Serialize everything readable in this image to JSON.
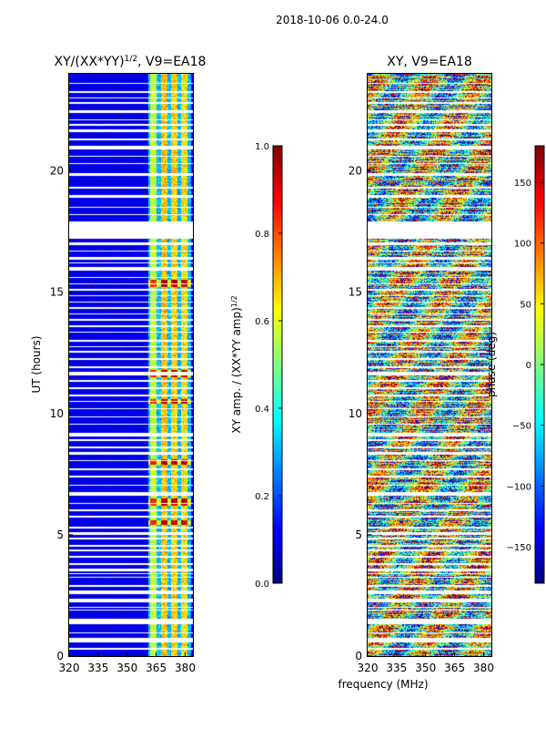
{
  "figure": {
    "suptitle": "2018-10-06 0.0-24.0",
    "xlabel": "frequency (MHz)",
    "ylabel": "UT (hours)"
  },
  "colormap": {
    "name": "jet",
    "stops": [
      "#00007f",
      "#0000ff",
      "#007fff",
      "#00ffff",
      "#7fff7f",
      "#ffff00",
      "#ff7f00",
      "#ff0000",
      "#7f0000"
    ],
    "gap_color": "#ffffff"
  },
  "chart_data": [
    {
      "type": "heatmap",
      "title_main": "XY/(XX*YY)",
      "title_exp": "1/2",
      "title_tail": ", V9=EA18",
      "x_range": [
        320,
        384
      ],
      "xticks": [
        320,
        335,
        350,
        365,
        380
      ],
      "y_range": [
        0,
        24
      ],
      "yticks": [
        0,
        5,
        10,
        15,
        20
      ],
      "colorbar": {
        "label_main": "XY amp. / (XX*YY amp)",
        "label_exp": "1/2",
        "range": [
          0.0,
          1.0
        ],
        "ticks": [
          0.0,
          0.2,
          0.4,
          0.6,
          0.8,
          1.0
        ],
        "tick_labels": [
          "0.0",
          "0.2",
          "0.4",
          "0.6",
          "0.8",
          "1.0"
        ]
      },
      "background_value": 0.08,
      "bright_band_mhz": [
        361,
        383
      ],
      "channel_spikes_mhz": [
        {
          "center": 363.5,
          "width": 1.6,
          "value": 0.6
        },
        {
          "center": 369.0,
          "width": 1.6,
          "value": 0.72
        },
        {
          "center": 374.5,
          "width": 1.6,
          "value": 0.7
        },
        {
          "center": 379.5,
          "width": 1.6,
          "value": 0.68
        }
      ],
      "hot_intervals_hours": [
        [
          15.2,
          15.5
        ],
        [
          11.5,
          11.8
        ],
        [
          10.4,
          10.6
        ],
        [
          7.9,
          8.1
        ],
        [
          6.2,
          6.5
        ],
        [
          5.4,
          5.6
        ]
      ]
    },
    {
      "type": "heatmap",
      "title_main": "XY, V9=EA18",
      "x_range": [
        320,
        384
      ],
      "xticks": [
        320,
        335,
        350,
        365,
        380
      ],
      "y_range": [
        0,
        24
      ],
      "yticks": [
        0,
        5,
        10,
        15,
        20
      ],
      "colorbar": {
        "label_main": "phase (deg)",
        "range": [
          -180,
          180
        ],
        "ticks": [
          -150,
          -100,
          -50,
          0,
          50,
          100,
          150
        ],
        "tick_labels": [
          "−150",
          "−100",
          "−50",
          "0",
          "50",
          "100",
          "150"
        ]
      },
      "value_character": "noisy phase, -180 to 180 deg, horizontal streak structure"
    }
  ],
  "flagged_intervals_hours": [
    [
      17.2,
      17.9
    ],
    [
      0.55,
      0.75
    ],
    [
      1.3,
      1.55
    ],
    [
      2.2,
      2.35
    ],
    [
      2.55,
      2.7
    ],
    [
      3.5,
      3.6
    ],
    [
      4.05,
      4.15
    ],
    [
      4.5,
      4.6
    ],
    [
      5.0,
      5.1
    ],
    [
      6.6,
      6.75
    ],
    [
      8.3,
      8.4
    ],
    [
      9.05,
      9.2
    ],
    [
      11.55,
      11.7
    ],
    [
      12.2,
      12.3
    ],
    [
      12.95,
      13.05
    ],
    [
      14.3,
      14.4
    ],
    [
      15.9,
      16.05
    ],
    [
      16.35,
      16.45
    ],
    [
      16.95,
      17.05
    ],
    [
      18.9,
      19.0
    ],
    [
      19.8,
      19.9
    ],
    [
      20.9,
      21.05
    ],
    [
      21.6,
      21.7
    ],
    [
      22.4,
      22.5
    ],
    [
      23.2,
      23.3
    ]
  ],
  "thin_gaps_hours": [
    0.3,
    0.95,
    1.9,
    2.0,
    2.9,
    3.25,
    3.4,
    3.8,
    4.35,
    4.85,
    5.3,
    5.75,
    6.0,
    6.3,
    7.05,
    7.4,
    7.7,
    8.05,
    8.6,
    8.9,
    9.55,
    9.85,
    10.2,
    10.5,
    10.75,
    11.05,
    11.35,
    11.9,
    12.55,
    12.75,
    13.35,
    13.6,
    13.85,
    14.1,
    14.6,
    14.85,
    15.1,
    15.35,
    15.6,
    16.2,
    16.7,
    18.2,
    18.5,
    19.3,
    20.3,
    20.6,
    21.3,
    21.9,
    22.1,
    22.8,
    23.0,
    23.6
  ]
}
